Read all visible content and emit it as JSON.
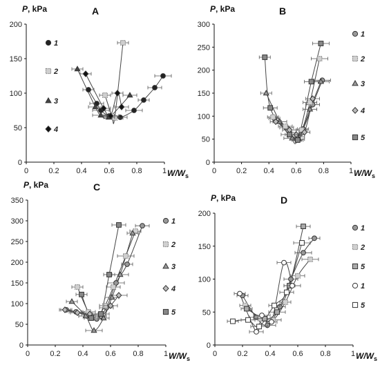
{
  "chart_data": [
    {
      "type": "scatter",
      "panel_label": "A",
      "ylabel": "P, kPa",
      "xlabel": "W/Ws",
      "xlim": [
        0,
        1
      ],
      "ylim": [
        0,
        200
      ],
      "xticks": [
        "0",
        "0.2",
        "0.4",
        "0.6",
        "0.8",
        "1"
      ],
      "yticks": [
        "0",
        "50",
        "100",
        "150",
        "200"
      ],
      "legend_italic": true,
      "series": [
        {
          "name": "1",
          "marker": "circle",
          "fill": "#222222",
          "x": [
            0.45,
            0.51,
            0.54,
            0.6,
            0.68,
            0.78,
            0.85,
            0.93,
            0.99
          ],
          "y": [
            105,
            85,
            75,
            67,
            65,
            75,
            90,
            108,
            125
          ]
        },
        {
          "name": "2",
          "marker": "square-light",
          "fill": "#cfcfcf",
          "x": [
            0.57,
            0.62,
            0.64,
            0.7
          ],
          "y": [
            97,
            67,
            64,
            173
          ]
        },
        {
          "name": "3",
          "marker": "triangle",
          "fill": "#444444",
          "x": [
            0.37,
            0.5,
            0.54,
            0.6,
            0.75
          ],
          "y": [
            135,
            80,
            68,
            65,
            97
          ]
        },
        {
          "name": "4",
          "marker": "diamond",
          "fill": "#111111",
          "x": [
            0.43,
            0.56,
            0.61,
            0.66,
            0.69
          ],
          "y": [
            128,
            78,
            67,
            100,
            80
          ]
        }
      ]
    },
    {
      "type": "scatter",
      "panel_label": "B",
      "ylabel": "P, kPa",
      "xlabel": "W/Ws",
      "xlim": [
        0,
        1
      ],
      "ylim": [
        0,
        300
      ],
      "xticks": [
        "0",
        "0.2",
        "0.4",
        "0.6",
        "0.8",
        "1"
      ],
      "yticks": [
        "0",
        "50",
        "100",
        "150",
        "200",
        "250",
        "300"
      ],
      "legend_italic": true,
      "series": [
        {
          "name": "1",
          "marker": "circle",
          "fill": "#999999",
          "x": [
            0.44,
            0.53,
            0.6,
            0.65,
            0.72,
            0.79
          ],
          "y": [
            95,
            75,
            55,
            72,
            125,
            178
          ]
        },
        {
          "name": "2",
          "marker": "square-light",
          "fill": "#d0d0d0",
          "x": [
            0.43,
            0.52,
            0.58,
            0.64,
            0.7,
            0.77
          ],
          "y": [
            98,
            78,
            60,
            70,
            130,
            225
          ]
        },
        {
          "name": "3",
          "marker": "triangle",
          "fill": "#999999",
          "x": [
            0.38,
            0.48,
            0.57,
            0.62,
            0.7,
            0.78
          ],
          "y": [
            150,
            88,
            52,
            50,
            115,
            175
          ]
        },
        {
          "name": "4",
          "marker": "diamond",
          "fill": "#bbbbbb",
          "x": [
            0.45,
            0.55,
            0.6,
            0.66,
            0.72
          ],
          "y": [
            88,
            70,
            60,
            65,
            138
          ]
        },
        {
          "name": "5",
          "marker": "square",
          "fill": "#888888",
          "x": [
            0.37,
            0.41,
            0.55,
            0.61,
            0.71,
            0.78
          ],
          "y": [
            228,
            118,
            60,
            48,
            175,
            258
          ]
        }
      ]
    },
    {
      "type": "scatter",
      "panel_label": "C",
      "ylabel": "P, kPa",
      "xlabel": "W/Ws",
      "xlim": [
        0,
        1
      ],
      "ylim": [
        0,
        350
      ],
      "xticks": [
        "0",
        "0.2",
        "0.4",
        "0.6",
        "0.8",
        "1"
      ],
      "yticks": [
        "0",
        "50",
        "100",
        "150",
        "200",
        "250",
        "300",
        "350"
      ],
      "legend_italic": false,
      "series": [
        {
          "name": "1",
          "marker": "circle",
          "fill": "#999999",
          "x": [
            0.28,
            0.35,
            0.43,
            0.5,
            0.57,
            0.64,
            0.72,
            0.83
          ],
          "y": [
            85,
            80,
            70,
            63,
            90,
            150,
            195,
            288
          ]
        },
        {
          "name": "2",
          "marker": "square-light",
          "fill": "#d0d0d0",
          "x": [
            0.36,
            0.44,
            0.5,
            0.56,
            0.62,
            0.71,
            0.78
          ],
          "y": [
            140,
            80,
            68,
            95,
            140,
            215,
            275
          ]
        },
        {
          "name": "3",
          "marker": "triangle",
          "fill": "#999999",
          "x": [
            0.32,
            0.42,
            0.48,
            0.55,
            0.61,
            0.67,
            0.76
          ],
          "y": [
            105,
            70,
            35,
            65,
            115,
            170,
            270
          ]
        },
        {
          "name": "4",
          "marker": "diamond",
          "fill": "#bbbbbb",
          "x": [
            0.27,
            0.36,
            0.45,
            0.53,
            0.6,
            0.66
          ],
          "y": [
            85,
            78,
            75,
            70,
            95,
            120
          ]
        },
        {
          "name": "5",
          "marker": "square",
          "fill": "#888888",
          "x": [
            0.39,
            0.46,
            0.53,
            0.59,
            0.66
          ],
          "y": [
            122,
            65,
            75,
            170,
            290
          ]
        }
      ]
    },
    {
      "type": "scatter",
      "panel_label": "D",
      "ylabel": "P, kPa",
      "xlabel": "W/Ws",
      "xlim": [
        0,
        1
      ],
      "ylim": [
        0,
        200
      ],
      "xticks": [
        "0",
        "0.2",
        "0.4",
        "0.6",
        "0.8",
        "1"
      ],
      "yticks": [
        "0",
        "50",
        "100",
        "150",
        "200"
      ],
      "legend_italic": true,
      "series": [
        {
          "name": "1",
          "marker": "circle",
          "fill": "#999999",
          "x": [
            0.2,
            0.3,
            0.38,
            0.47,
            0.55,
            0.64,
            0.72
          ],
          "y": [
            75,
            42,
            30,
            58,
            100,
            140,
            162
          ]
        },
        {
          "name": "2",
          "marker": "square-light",
          "fill": "#d0d0d0",
          "x": [
            0.22,
            0.33,
            0.42,
            0.51,
            0.6,
            0.69
          ],
          "y": [
            60,
            40,
            38,
            65,
            105,
            130
          ]
        },
        {
          "name": "5",
          "marker": "square",
          "fill": "#aaaaaa",
          "x": [
            0.23,
            0.36,
            0.45,
            0.54,
            0.64
          ],
          "y": [
            55,
            40,
            50,
            90,
            180
          ]
        },
        {
          "name": "1",
          "marker": "circle-open",
          "fill": "#ffffff",
          "x": [
            0.18,
            0.3,
            0.34,
            0.41,
            0.5,
            0.56
          ],
          "y": [
            78,
            20,
            45,
            35,
            125,
            90
          ]
        },
        {
          "name": "5",
          "marker": "square-open",
          "fill": "#ffffff",
          "x": [
            0.13,
            0.24,
            0.32,
            0.43,
            0.52,
            0.63
          ],
          "y": [
            36,
            38,
            28,
            60,
            80,
            155
          ]
        }
      ]
    }
  ]
}
